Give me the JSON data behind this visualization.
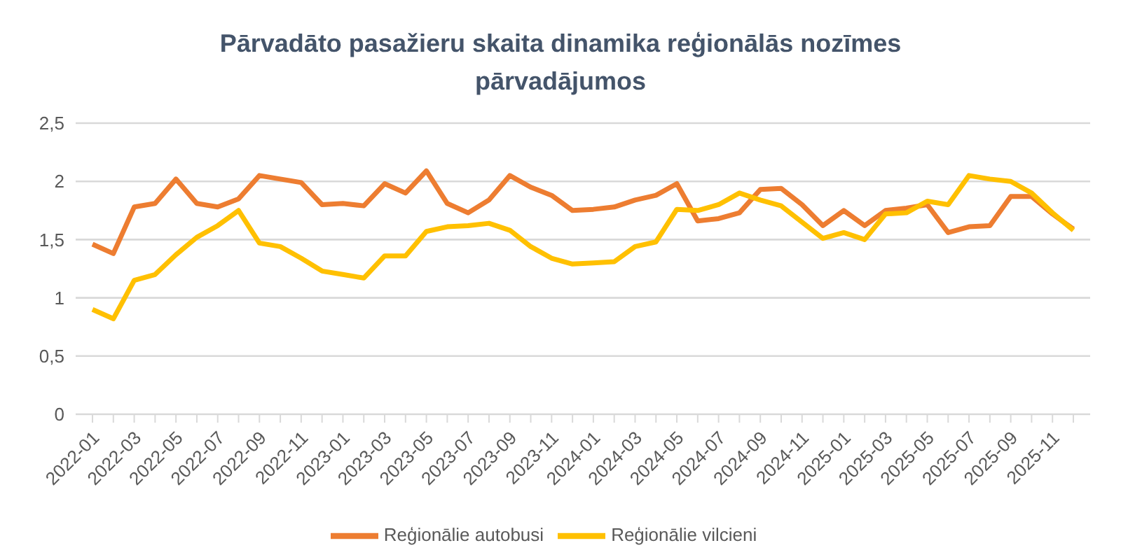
{
  "chart_data": {
    "type": "line",
    "title": "Pārvadāto pasažieru skaita dinamika reģionālās nozīmes pārvadājumos",
    "categories": [
      "2022-01",
      null,
      "2022-03",
      null,
      "2022-05",
      null,
      "2022-07",
      null,
      "2022-09",
      null,
      "2022-11",
      null,
      "2023-01",
      null,
      "2023-03",
      null,
      "2023-05",
      null,
      "2023-07",
      null,
      "2023-09",
      null,
      "2023-11",
      null,
      "2024-01",
      null,
      "2024-03",
      null,
      "2024-05",
      null,
      "2024-07",
      null,
      "2024-09",
      null,
      "2024-11",
      null,
      "2025-01",
      null,
      "2025-03",
      null,
      "2025-05",
      null,
      "2025-07",
      null,
      "2025-09",
      null,
      "2025-11",
      null
    ],
    "series": [
      {
        "name": "Reģionālie autobusi",
        "color": "#ed7d31",
        "values": [
          1.46,
          1.38,
          1.78,
          1.81,
          2.02,
          1.81,
          1.78,
          1.85,
          2.05,
          2.02,
          1.99,
          1.8,
          1.81,
          1.79,
          1.98,
          1.9,
          2.09,
          1.81,
          1.73,
          1.84,
          2.05,
          1.95,
          1.88,
          1.75,
          1.76,
          1.78,
          1.84,
          1.88,
          1.98,
          1.66,
          1.68,
          1.73,
          1.93,
          1.94,
          1.8,
          1.62,
          1.75,
          1.62,
          1.75,
          1.77,
          1.8,
          1.56,
          1.61,
          1.62,
          1.87,
          1.87,
          1.72,
          1.59
        ]
      },
      {
        "name": "Reģionālie vilcieni",
        "color": "#ffc000",
        "values": [
          0.9,
          0.82,
          1.15,
          1.2,
          1.37,
          1.52,
          1.62,
          1.75,
          1.47,
          1.44,
          1.34,
          1.23,
          1.2,
          1.17,
          1.36,
          1.36,
          1.57,
          1.61,
          1.62,
          1.64,
          1.58,
          1.44,
          1.34,
          1.29,
          1.3,
          1.31,
          1.44,
          1.48,
          1.76,
          1.75,
          1.8,
          1.9,
          1.84,
          1.79,
          1.65,
          1.51,
          1.56,
          1.5,
          1.72,
          1.73,
          1.83,
          1.8,
          2.05,
          2.02,
          2.0,
          1.9,
          1.73,
          1.58
        ]
      }
    ],
    "ylim": [
      0,
      2.5
    ],
    "yticks": [
      0,
      {
        "value": 0.5,
        "label": "0,5"
      },
      1,
      {
        "value": 1.5,
        "label": "1,5"
      },
      2,
      {
        "value": 2.5,
        "label": "2,5"
      }
    ],
    "grid": "y",
    "legend": "bottom",
    "marker": "none",
    "line_style": "solid"
  }
}
